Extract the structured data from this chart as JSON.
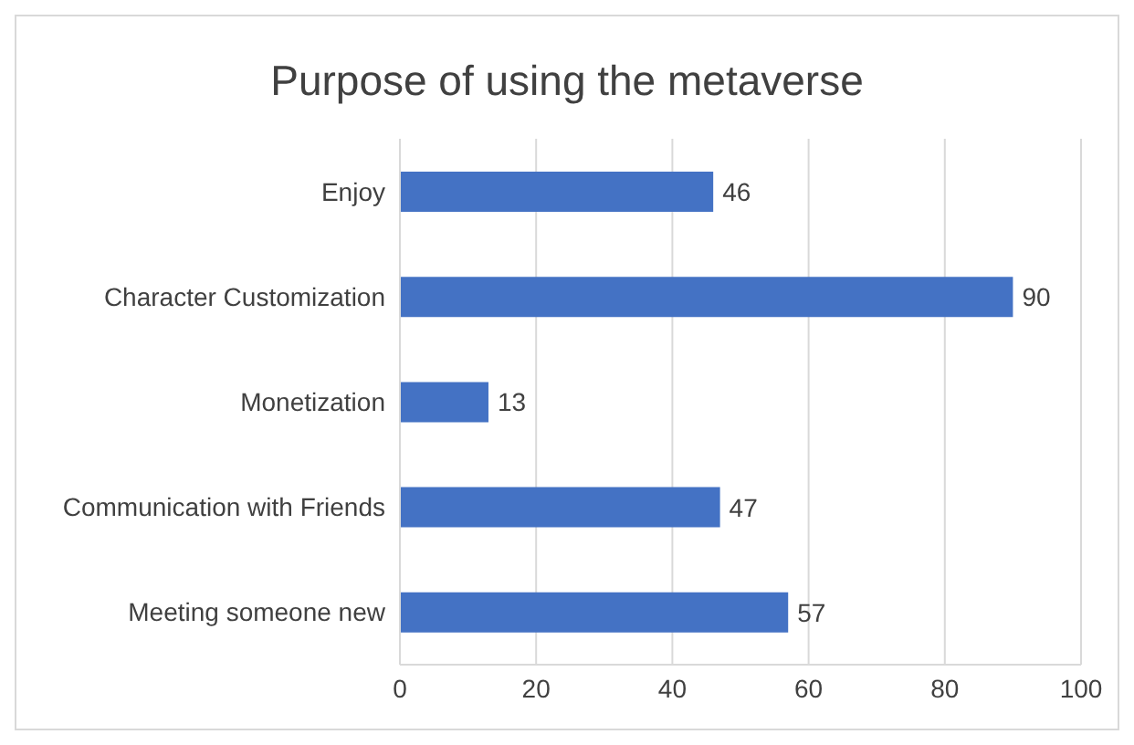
{
  "chart_data": {
    "type": "bar",
    "orientation": "horizontal",
    "title": "Purpose of using the metaverse",
    "categories": [
      "Enjoy",
      "Character Customization",
      "Monetization",
      "Communication with Friends",
      "Meeting someone new"
    ],
    "values": [
      46,
      90,
      13,
      47,
      57
    ],
    "color": "#4472c4",
    "xlim": [
      0,
      100
    ],
    "xticks": [
      0,
      20,
      40,
      60,
      80,
      100
    ],
    "grid": "x",
    "data_labels": true
  }
}
